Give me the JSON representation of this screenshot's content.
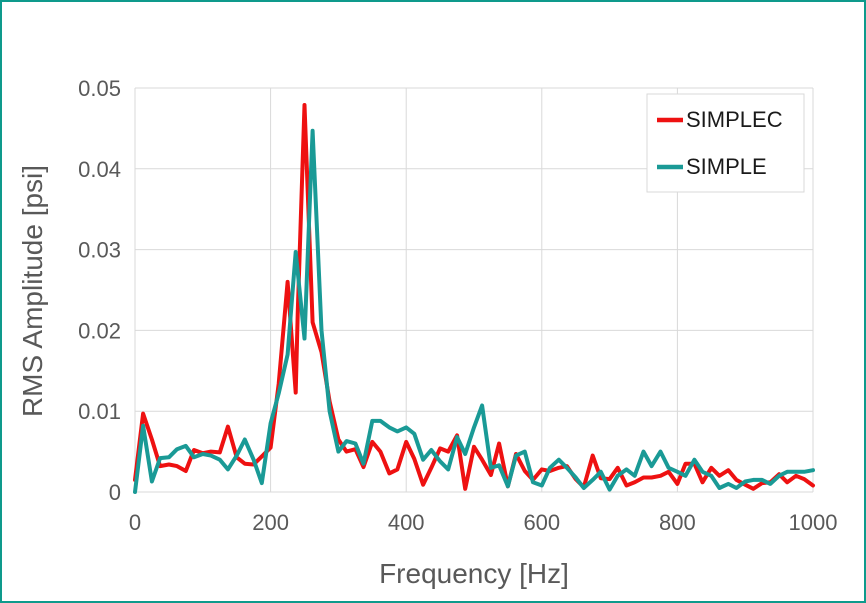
{
  "chart_data": {
    "type": "line",
    "title": "",
    "xlabel": "Frequency [Hz]",
    "ylabel": "RMS Amplitude [psi]",
    "xlim": [
      0,
      1000
    ],
    "ylim": [
      0,
      0.05
    ],
    "xticks": [
      0,
      200,
      400,
      600,
      800,
      1000
    ],
    "xtick_labels": [
      "0",
      "200",
      "400",
      "600",
      "800",
      "1000"
    ],
    "yticks": [
      0,
      0.01,
      0.02,
      0.03,
      0.04,
      0.05
    ],
    "ytick_labels": [
      "0",
      "0.01",
      "0.02",
      "0.03",
      "0.04",
      "0.05"
    ],
    "grid": true,
    "legend_position": "top-right",
    "series": [
      {
        "name": "SIMPLEC",
        "color": "#ee1111",
        "x": [
          0,
          12,
          25,
          37,
          50,
          62,
          75,
          87,
          100,
          112,
          125,
          137,
          150,
          162,
          175,
          187,
          200,
          212,
          225,
          237,
          240,
          250,
          262,
          275,
          287,
          300,
          312,
          325,
          337,
          350,
          362,
          375,
          387,
          400,
          412,
          425,
          437,
          450,
          462,
          475,
          487,
          500,
          512,
          525,
          537,
          550,
          562,
          575,
          587,
          600,
          612,
          625,
          637,
          650,
          662,
          675,
          687,
          700,
          712,
          725,
          737,
          750,
          762,
          775,
          787,
          800,
          812,
          825,
          837,
          850,
          862,
          875,
          887,
          900,
          912,
          925,
          937,
          950,
          962,
          975,
          987,
          1000
        ],
        "values": [
          0.0015,
          0.0097,
          0.0065,
          0.0032,
          0.0034,
          0.0032,
          0.0026,
          0.0052,
          0.0048,
          0.005,
          0.0049,
          0.0081,
          0.0043,
          0.0035,
          0.0034,
          0.0044,
          0.0055,
          0.0134,
          0.026,
          0.0123,
          0.022,
          0.0479,
          0.021,
          0.0173,
          0.0112,
          0.0065,
          0.005,
          0.0053,
          0.0031,
          0.0062,
          0.005,
          0.0023,
          0.0028,
          0.0062,
          0.0041,
          0.0009,
          0.003,
          0.0054,
          0.005,
          0.007,
          0.0004,
          0.0056,
          0.004,
          0.0021,
          0.006,
          0.0007,
          0.0047,
          0.0026,
          0.0015,
          0.0028,
          0.0026,
          0.003,
          0.0032,
          0.0016,
          0.0006,
          0.0045,
          0.0017,
          0.0016,
          0.003,
          0.0008,
          0.0012,
          0.0018,
          0.0018,
          0.002,
          0.0025,
          0.001,
          0.0035,
          0.0035,
          0.0012,
          0.003,
          0.002,
          0.0027,
          0.0015,
          0.0009,
          0.0004,
          0.0011,
          0.0012,
          0.0022,
          0.0012,
          0.002,
          0.0016,
          0.0008
        ]
      },
      {
        "name": "SIMPLE",
        "color": "#1a9a96",
        "x": [
          0,
          12,
          25,
          37,
          50,
          62,
          75,
          87,
          100,
          112,
          125,
          137,
          150,
          162,
          175,
          187,
          200,
          212,
          225,
          237,
          250,
          262,
          275,
          287,
          300,
          312,
          325,
          337,
          350,
          362,
          375,
          387,
          400,
          412,
          425,
          437,
          450,
          462,
          475,
          487,
          500,
          512,
          525,
          537,
          550,
          562,
          575,
          587,
          600,
          612,
          625,
          637,
          650,
          662,
          675,
          687,
          700,
          712,
          725,
          737,
          750,
          762,
          775,
          787,
          800,
          812,
          825,
          837,
          850,
          862,
          875,
          887,
          900,
          912,
          925,
          937,
          950,
          962,
          975,
          987,
          1000
        ],
        "values": [
          0.0,
          0.0082,
          0.0013,
          0.0042,
          0.0043,
          0.0053,
          0.0057,
          0.0043,
          0.0047,
          0.0045,
          0.004,
          0.0028,
          0.0045,
          0.0065,
          0.004,
          0.0011,
          0.0085,
          0.0122,
          0.017,
          0.0297,
          0.019,
          0.0447,
          0.02,
          0.01,
          0.005,
          0.0063,
          0.006,
          0.0035,
          0.0088,
          0.0088,
          0.008,
          0.0075,
          0.008,
          0.0072,
          0.004,
          0.0052,
          0.0038,
          0.0028,
          0.0068,
          0.0047,
          0.008,
          0.0107,
          0.003,
          0.0033,
          0.0007,
          0.0045,
          0.005,
          0.0012,
          0.0008,
          0.003,
          0.004,
          0.003,
          0.0018,
          0.0005,
          0.0015,
          0.0025,
          0.0003,
          0.002,
          0.0028,
          0.002,
          0.005,
          0.0032,
          0.005,
          0.003,
          0.0025,
          0.002,
          0.004,
          0.0025,
          0.002,
          0.0005,
          0.001,
          0.0005,
          0.0013,
          0.0015,
          0.0015,
          0.001,
          0.002,
          0.0025,
          0.0025,
          0.0025,
          0.0027
        ]
      }
    ]
  }
}
